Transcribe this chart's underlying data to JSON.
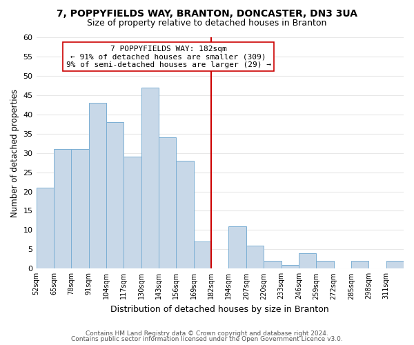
{
  "title": "7, POPPYFIELDS WAY, BRANTON, DONCASTER, DN3 3UA",
  "subtitle": "Size of property relative to detached houses in Branton",
  "xlabel": "Distribution of detached houses by size in Branton",
  "ylabel": "Number of detached properties",
  "footer_lines": [
    "Contains HM Land Registry data © Crown copyright and database right 2024.",
    "Contains public sector information licensed under the Open Government Licence v3.0."
  ],
  "bin_labels": [
    "52sqm",
    "65sqm",
    "78sqm",
    "91sqm",
    "104sqm",
    "117sqm",
    "130sqm",
    "143sqm",
    "156sqm",
    "169sqm",
    "182sqm",
    "194sqm",
    "207sqm",
    "220sqm",
    "233sqm",
    "246sqm",
    "259sqm",
    "272sqm",
    "285sqm",
    "298sqm",
    "311sqm"
  ],
  "bar_values": [
    21,
    31,
    31,
    43,
    38,
    29,
    47,
    34,
    28,
    7,
    0,
    11,
    6,
    2,
    1,
    4,
    2,
    0,
    2,
    0,
    2
  ],
  "bar_color": "#c8d8e8",
  "bar_edge_color": "#7bafd4",
  "vline_x_index": 10,
  "vline_color": "#cc0000",
  "ylim": [
    0,
    60
  ],
  "yticks": [
    0,
    5,
    10,
    15,
    20,
    25,
    30,
    35,
    40,
    45,
    50,
    55,
    60
  ],
  "annotation_title": "7 POPPYFIELDS WAY: 182sqm",
  "annotation_line1": "← 91% of detached houses are smaller (309)",
  "annotation_line2": "9% of semi-detached houses are larger (29) →",
  "grid_color": "#e8e8e8",
  "background_color": "#ffffff",
  "title_fontsize": 10,
  "subtitle_fontsize": 9
}
